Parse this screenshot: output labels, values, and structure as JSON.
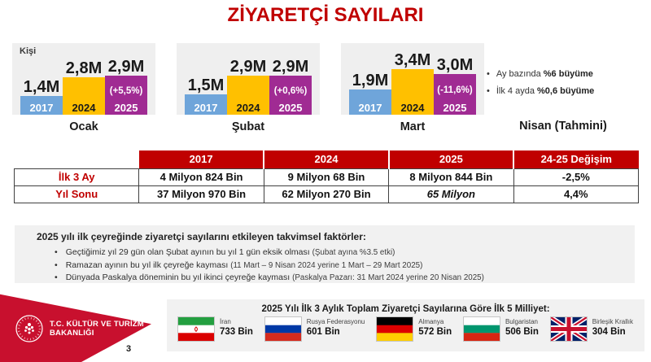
{
  "title": "ZİYARETÇİ SAYILARI",
  "colors": {
    "accent_red": "#C00000",
    "banner_red": "#C8102E",
    "panel_gray": "#EFEFEF",
    "bar_2017_blue": "#6FA5DA",
    "bar_2024_yellow": "#FFC000",
    "bar_2025_purple": "#A02B93"
  },
  "chart_data": {
    "type": "bar",
    "title": "ZİYARETÇİ SAYILARI",
    "unit_label": "Kişi",
    "value_unit": "milyon kişi (M)",
    "legend_position": "in-bar-year-labels",
    "series": [
      {
        "year": "2017",
        "color": "#6FA5DA",
        "label_color": "#ffffff"
      },
      {
        "year": "2024",
        "color": "#FFC000",
        "label_color": "#1a1a1a"
      },
      {
        "year": "2025",
        "color": "#A02B93",
        "label_color": "#ffffff"
      }
    ],
    "months": [
      {
        "label": "Ocak",
        "values": [
          1.4,
          2.8,
          2.9
        ],
        "value_labels": [
          "1,4M",
          "2,8M",
          "2,9M"
        ],
        "change_label": "(+5,5%)"
      },
      {
        "label": "Şubat",
        "values": [
          1.5,
          2.9,
          2.9
        ],
        "value_labels": [
          "1,5M",
          "2,9M",
          "2,9M"
        ],
        "change_label": "(+0,6%)"
      },
      {
        "label": "Mart",
        "values": [
          1.9,
          3.4,
          3.0
        ],
        "value_labels": [
          "1,9M",
          "3,4M",
          "3,0M"
        ],
        "change_label": "(-11,6%)"
      }
    ],
    "april_forecast": {
      "label": "Nisan (Tahmini)",
      "bullets": [
        {
          "prefix": "Ay bazında ",
          "bold": "%6 büyüme"
        },
        {
          "prefix": "İlk 4 ayda ",
          "bold": "%0,6 büyüme"
        }
      ]
    }
  },
  "table": {
    "headers": [
      "",
      "2017",
      "2024",
      "2025",
      "24-25 Değişim"
    ],
    "rows": [
      {
        "label": "İlk 3 Ay",
        "cells": [
          "4 Milyon 824 Bin",
          "9 Milyon 68 Bin",
          "8 Milyon 844 Bin",
          "-2,5%"
        ]
      },
      {
        "label": "Yıl Sonu",
        "cells": [
          "37 Milyon 970 Bin",
          "62 Milyon 270 Bin",
          "65 Milyon",
          "4,4%"
        ]
      }
    ]
  },
  "notes": {
    "title": "2025 yılı ilk çeyreğinde ziyaretçi sayılarını etkileyen takvimsel faktörler:",
    "bullets": [
      {
        "text": "Geçtiğimiz yıl 29 gün olan Şubat ayının bu yıl 1 gün eksik olması ",
        "note": "(Şubat ayına %3.5 etki)"
      },
      {
        "text": "Ramazan ayının bu yıl ilk çeyreğe kayması ",
        "note": "(11 Mart – 9 Nisan 2024 yerine 1 Mart – 29 Mart 2025)"
      },
      {
        "text": "Dünyada Paskalya döneminin bu yıl ikinci çeyreğe kayması ",
        "note": "(Paskalya Pazarı: 31 Mart 2024 yerine 20 Nisan 2025)"
      }
    ]
  },
  "footer": {
    "ministry_line1": "T.C. KÜLTÜR VE TURİZM",
    "ministry_line2": "BAKANLIĞI",
    "page_number": "3",
    "nationalities": {
      "title": "2025 Yılı İlk 3 Aylık Toplam Ziyaretçi Sayılarına Göre İlk 5 Milliyet:",
      "items": [
        {
          "country": "İran",
          "value": "733 Bin"
        },
        {
          "country": "Rusya Federasyonu",
          "value": "601 Bin"
        },
        {
          "country": "Almanya",
          "value": "572 Bin"
        },
        {
          "country": "Bulgaristan",
          "value": "506 Bin"
        },
        {
          "country": "Birleşik Krallık",
          "value": "304 Bin"
        }
      ]
    }
  }
}
